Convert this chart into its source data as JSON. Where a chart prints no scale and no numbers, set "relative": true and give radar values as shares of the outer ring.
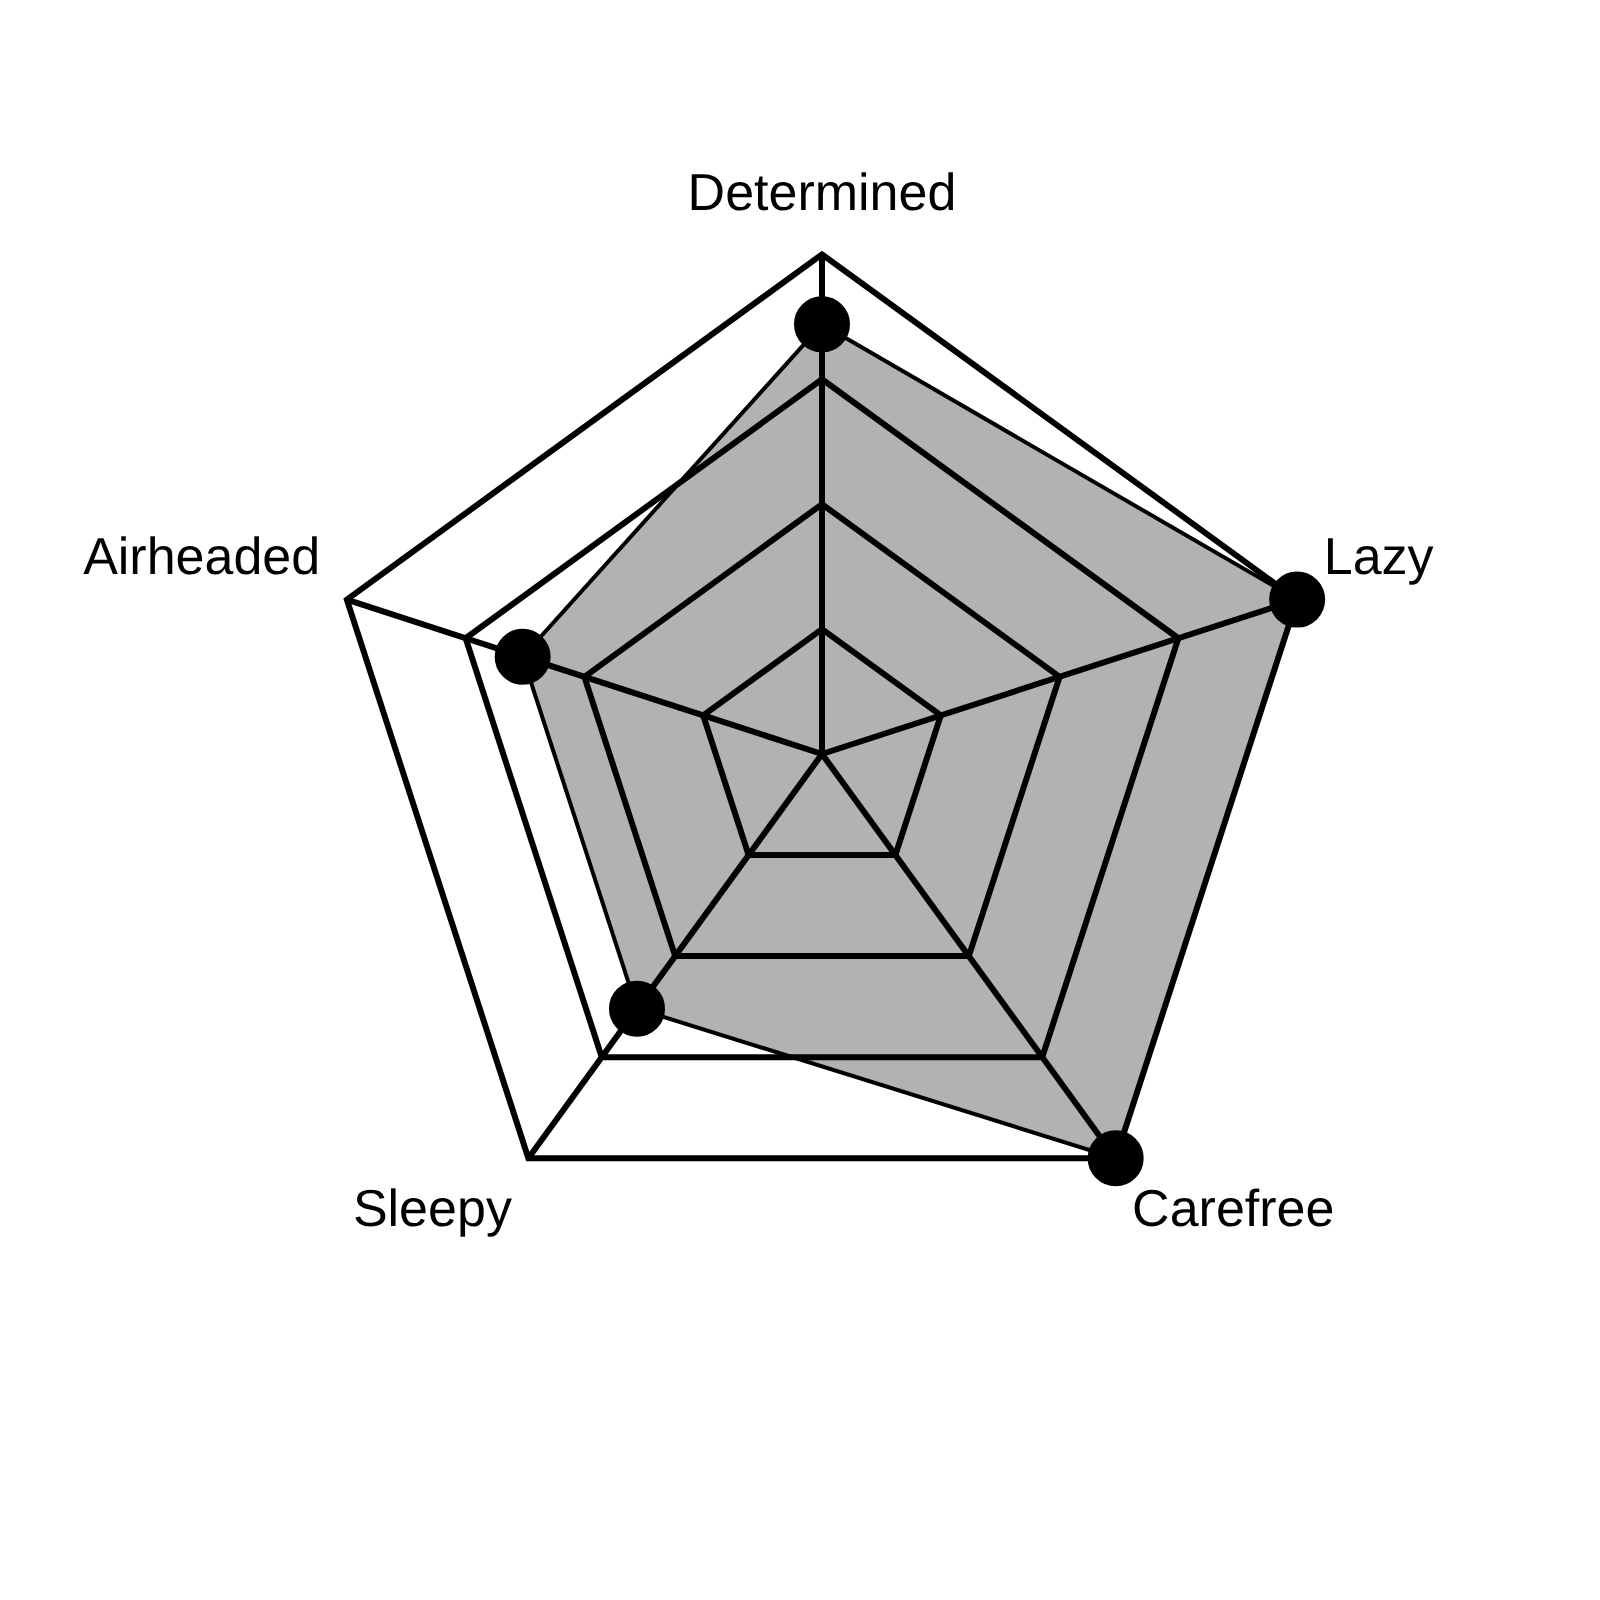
{
  "chart_data": {
    "type": "radar",
    "categories": [
      "Determined",
      "Lazy",
      "Carefree",
      "Sleepy",
      "Airheaded"
    ],
    "series": [
      {
        "color": "#000000",
        "values": [
          0.86,
          1,
          1,
          0.63,
          0.63
        ]
      }
    ],
    "relative": true,
    "grid": true,
    "marker": "circle"
  }
}
